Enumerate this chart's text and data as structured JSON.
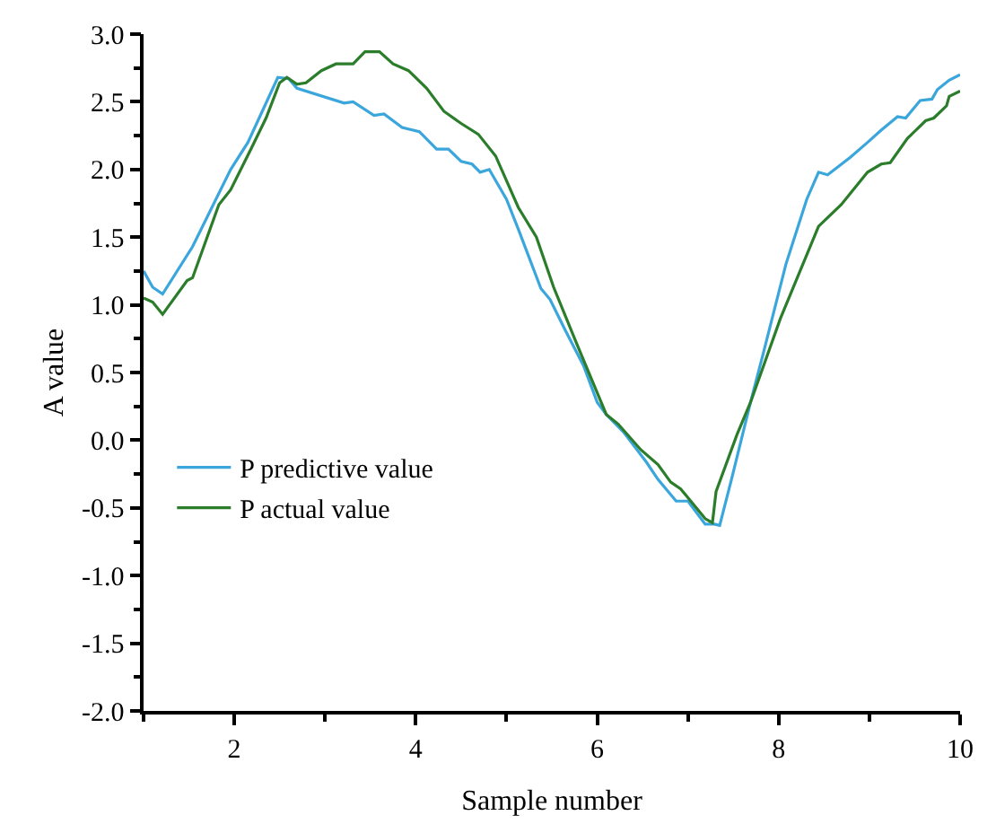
{
  "chart_data": {
    "type": "line",
    "xlabel": "Sample number",
    "ylabel": "A value",
    "xlim": [
      1,
      10
    ],
    "xticks": [
      2,
      4,
      6,
      8,
      10
    ],
    "ylim": [
      -2.0,
      3.0
    ],
    "yticks": [
      {
        "value": -2,
        "label": "-2.0"
      },
      {
        "value": -1.5,
        "label": "-1.5"
      },
      {
        "value": -1,
        "label": "-1.0"
      },
      {
        "value": -0.5,
        "label": "-0.5"
      },
      {
        "value": 0,
        "label": "0.0"
      },
      {
        "value": 0.5,
        "label": "0.5"
      },
      {
        "value": 1,
        "label": "1.0"
      },
      {
        "value": 1.5,
        "label": "1.5"
      },
      {
        "value": 2,
        "label": "2.0"
      },
      {
        "value": 2.5,
        "label": "2.5"
      },
      {
        "value": 3,
        "label": "3.0"
      }
    ],
    "legend": "left",
    "marker": "none",
    "line_style": "solid",
    "series": [
      {
        "name": "P predictive value",
        "color": "#3aa6dc",
        "x": [
          1,
          1.1,
          1.21,
          1.54,
          1.96,
          2.15,
          2.48,
          2.6,
          2.69,
          3.21,
          3.31,
          3.54,
          3.65,
          3.85,
          4.04,
          4.23,
          4.36,
          4.5,
          4.62,
          4.71,
          4.81,
          5.0,
          5.13,
          5.38,
          5.48,
          5.65,
          5.85,
          6.0,
          6.1,
          6.29,
          6.54,
          6.67,
          6.87,
          7.0,
          7.19,
          7.29,
          7.35,
          7.48,
          7.69,
          7.83,
          8.08,
          8.31,
          8.44,
          8.54,
          8.79,
          8.98,
          9.13,
          9.31,
          9.4,
          9.56,
          9.69,
          9.75,
          9.88,
          10
        ],
        "values": [
          1.25,
          1.13,
          1.08,
          1.43,
          2.0,
          2.2,
          2.68,
          2.67,
          2.6,
          2.49,
          2.5,
          2.4,
          2.41,
          2.31,
          2.28,
          2.15,
          2.15,
          2.06,
          2.04,
          1.98,
          2.0,
          1.78,
          1.56,
          1.12,
          1.04,
          0.81,
          0.55,
          0.28,
          0.19,
          0.06,
          -0.16,
          -0.29,
          -0.45,
          -0.45,
          -0.62,
          -0.62,
          -0.63,
          -0.29,
          0.28,
          0.64,
          1.3,
          1.78,
          1.98,
          1.96,
          2.09,
          2.2,
          2.29,
          2.39,
          2.38,
          2.51,
          2.52,
          2.59,
          2.66,
          2.7
        ]
      },
      {
        "name": "P actual value",
        "color": "#2b7d2b",
        "x": [
          1,
          1.1,
          1.21,
          1.48,
          1.54,
          1.83,
          1.96,
          2.19,
          2.35,
          2.5,
          2.58,
          2.69,
          2.79,
          2.96,
          3.12,
          3.31,
          3.44,
          3.6,
          3.75,
          3.92,
          4.12,
          4.31,
          4.5,
          4.69,
          4.88,
          5.13,
          5.33,
          5.52,
          5.77,
          6.1,
          6.23,
          6.48,
          6.67,
          6.81,
          6.92,
          7.19,
          7.27,
          7.31,
          7.54,
          7.69,
          8.02,
          8.44,
          8.69,
          8.98,
          9.13,
          9.23,
          9.42,
          9.62,
          9.71,
          9.85,
          9.88,
          10
        ],
        "values": [
          1.05,
          1.02,
          0.93,
          1.18,
          1.2,
          1.74,
          1.85,
          2.16,
          2.38,
          2.64,
          2.68,
          2.63,
          2.64,
          2.73,
          2.78,
          2.78,
          2.87,
          2.87,
          2.78,
          2.73,
          2.6,
          2.43,
          2.34,
          2.26,
          2.1,
          1.72,
          1.5,
          1.13,
          0.72,
          0.19,
          0.12,
          -0.07,
          -0.18,
          -0.31,
          -0.36,
          -0.58,
          -0.61,
          -0.38,
          0.04,
          0.28,
          0.9,
          1.58,
          1.74,
          1.98,
          2.04,
          2.05,
          2.23,
          2.36,
          2.38,
          2.47,
          2.54,
          2.58
        ]
      }
    ]
  }
}
